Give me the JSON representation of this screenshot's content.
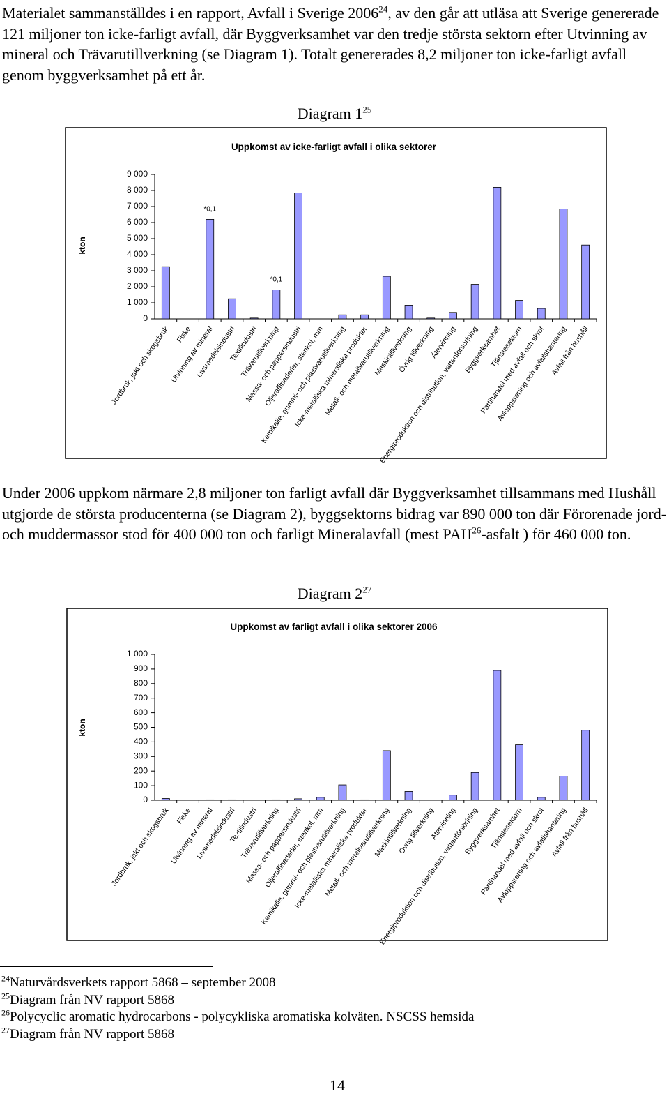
{
  "paragraphs": [
    {
      "runs": [
        {
          "text": "Materialet sammanställdes i en rapport, Avfall i Sverige 2006"
        },
        {
          "sup": "24"
        },
        {
          "text": ", av den går att utläsa att Sverige genererade 121 miljoner ton icke-farligt avfall, där Byggverksamhet var den tredje största sektorn efter Utvinning av mineral och Trävarutillverkning (se Diagram 1). Totalt genererades 8,2 miljoner ton icke-farligt avfall genom byggverksamhet på ett år."
        }
      ]
    },
    {
      "runs": [
        {
          "text": "Under 2006 uppkom närmare 2,8 miljoner ton farligt avfall där Byggverksamhet tillsammans med Hushåll utgjorde de största producenterna (se Diagram 2), byggsektorns bidrag var 890 000 ton där Förorenade jord- och muddermassor stod för 400 000 ton och farligt Mineralavfall (mest PAH"
        },
        {
          "sup": "26"
        },
        {
          "text": "-asfalt ) för 460 000 ton."
        }
      ]
    }
  ],
  "chart_data": [
    {
      "type": "bar",
      "caption": [
        {
          "text": "Diagram 1"
        },
        {
          "sup": "25"
        }
      ],
      "title": "Uppkomst av icke-farligt avfall i olika sektorer",
      "y_label": "kton",
      "categories": [
        "Jordbruk, jakt och skogsbruk",
        "Fiske",
        "Utvinning av mineral",
        "Livsmedelsindustri",
        "Textilindustri",
        "Trävarutillverkning",
        "Massa- och pappersindustri",
        "Oljeraffinaderier, stenkol, mm",
        "Kemikalie, gummi- och plastvarutillverkning",
        "Icke-metalliska mineraliska produkter",
        "Metall- och metallvarutillverkning",
        "Maskintillverkning",
        "Övrig tillverkning",
        "Återvinning",
        "Energiproduktion och distribution, vattenförsörjning",
        "Byggverksamhet",
        "Tjänstesektorn",
        "Partihandel med avfall och skrot",
        "Avloppsrening och avfallshantering",
        "Avfall från hushåll"
      ],
      "values": [
        3250,
        0,
        6200,
        1250,
        50,
        1800,
        7850,
        0,
        250,
        250,
        2650,
        850,
        50,
        400,
        2150,
        8200,
        1150,
        650,
        6850,
        4600
      ],
      "color": "#9999ff",
      "ylim": [
        0,
        9000
      ],
      "yticks": [
        0,
        {
          "value": 1000,
          "label": "1 000"
        },
        {
          "value": 2000,
          "label": "2 000"
        },
        {
          "value": 3000,
          "label": "3 000"
        },
        {
          "value": 4000,
          "label": "4 000"
        },
        {
          "value": 5000,
          "label": "5 000"
        },
        {
          "value": 6000,
          "label": "6 000"
        },
        {
          "value": 7000,
          "label": "7 000"
        },
        {
          "value": 8000,
          "label": "8 000"
        },
        {
          "value": 9000,
          "label": "9 000"
        }
      ],
      "grid": false,
      "annotations": [
        {
          "text": "*0,1",
          "category": "Utvinning av mineral"
        },
        {
          "text": "*0,1",
          "category": "Trävarutillverkning"
        }
      ]
    },
    {
      "type": "bar",
      "caption": [
        {
          "text": "Diagram 2"
        },
        {
          "sup": "27"
        }
      ],
      "title": "Uppkomst av farligt avfall i olika sektorer 2006",
      "y_label": "kton",
      "categories": [
        "Jordbruk, jakt och skogsbruk",
        "Fiske",
        "Utvinning av mineral",
        "Livsmedelsindustri",
        "Textilindustri",
        "Trävarutillverkning",
        "Massa- och pappersindustri",
        "Oljeraffinaderier, stenkol, mm",
        "Kemikalie, gummi- och plastvarutillverkning",
        "Icke-metalliska mineraliska produkter",
        "Metall- och metallvarutillverkning",
        "Maskintillverkning",
        "Övrig tillverkning",
        "Återvinning",
        "Energiproduktion och distribution, vattenförsörjning",
        "Byggverksamhet",
        "Tjänstesektorn",
        "Partihandel med avfall och skrot",
        "Avloppsrening och avfallshantering",
        "Avfall från hushåll"
      ],
      "values": [
        12,
        0,
        3,
        3,
        0,
        3,
        10,
        20,
        105,
        3,
        340,
        60,
        0,
        35,
        190,
        890,
        380,
        20,
        165,
        480
      ],
      "color": "#9999ff",
      "ylim": [
        0,
        1000
      ],
      "yticks": [
        0,
        100,
        200,
        300,
        400,
        500,
        600,
        700,
        800,
        900,
        {
          "value": 1000,
          "label": "1 000"
        }
      ],
      "grid": false
    }
  ],
  "footnotes": [
    {
      "mark": "24",
      "text": "Naturvårdsverkets rapport 5868 – september 2008"
    },
    {
      "mark": "25",
      "text": "Diagram från NV rapport 5868"
    },
    {
      "mark": "26",
      "text": "Polycyclic aromatic hydrocarbons - polycykliska aromatiska kolväten.  NSCSS hemsida"
    },
    {
      "mark": "27",
      "text": "Diagram från NV rapport 5868"
    }
  ],
  "page_number": "14"
}
